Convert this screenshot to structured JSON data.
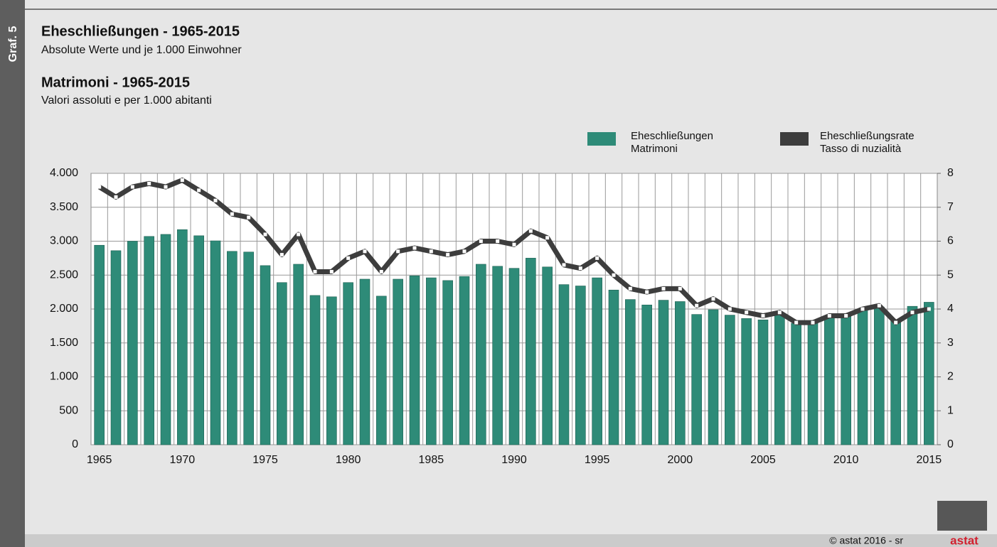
{
  "page": {
    "side_label": "Graf. 5",
    "credit": "© astat 2016 - sr",
    "logo": "astat"
  },
  "chart_data": {
    "type": "bar",
    "title": "Eheschließungen - 1965-2015",
    "subtitle": "Absolute Werte und je 1.000 Einwohner",
    "title_it": "Matrimoni - 1965-2015",
    "subtitle_it": "Valori assoluti e per 1.000 abitanti",
    "categories": [
      "1965",
      null,
      null,
      null,
      null,
      "1970",
      null,
      null,
      null,
      null,
      "1975",
      null,
      null,
      null,
      null,
      "1980",
      null,
      null,
      null,
      null,
      "1985",
      null,
      null,
      null,
      null,
      "1990",
      null,
      null,
      null,
      null,
      "1995",
      null,
      null,
      null,
      null,
      "2000",
      null,
      null,
      null,
      null,
      "2005",
      null,
      null,
      null,
      null,
      "2010",
      null,
      null,
      null,
      null,
      "2015"
    ],
    "series": [
      {
        "name": "Eheschließungen\nMatrimoni",
        "type": "bar",
        "color": "#2e8b78",
        "values": [
          2940,
          2860,
          3000,
          3070,
          3100,
          3170,
          3080,
          3005,
          2850,
          2840,
          2640,
          2390,
          2660,
          2200,
          2180,
          2390,
          2440,
          2190,
          2440,
          2490,
          2460,
          2420,
          2480,
          2660,
          2630,
          2600,
          2750,
          2620,
          2360,
          2340,
          2460,
          2280,
          2140,
          2060,
          2130,
          2110,
          1920,
          1990,
          1910,
          1860,
          1840,
          1940,
          1790,
          1790,
          1880,
          1910,
          1980,
          2030,
          1840,
          2040,
          2100
        ]
      },
      {
        "name": "Eheschließungsrate\nTasso di nuzialità",
        "type": "line",
        "axis": "y2",
        "color": "#3d3d3d",
        "values": [
          7.6,
          7.3,
          7.6,
          7.7,
          7.6,
          7.8,
          7.5,
          7.2,
          6.8,
          6.7,
          6.2,
          5.6,
          6.2,
          5.1,
          5.1,
          5.5,
          5.7,
          5.1,
          5.7,
          5.8,
          5.7,
          5.6,
          5.7,
          6.0,
          6.0,
          5.9,
          6.3,
          6.1,
          5.3,
          5.2,
          5.5,
          5.0,
          4.6,
          4.5,
          4.6,
          4.6,
          4.1,
          4.3,
          4.0,
          3.9,
          3.8,
          3.9,
          3.6,
          3.6,
          3.8,
          3.8,
          4.0,
          4.1,
          3.6,
          3.9,
          4.0
        ]
      }
    ],
    "ylim": [
      0,
      4000
    ],
    "yticks": [
      0,
      500,
      {
        "value": 1000,
        "label": "1.000"
      },
      {
        "value": 1500,
        "label": "1.500"
      },
      {
        "value": 2000,
        "label": "2.000"
      },
      {
        "value": 2500,
        "label": "2.500"
      },
      {
        "value": 3000,
        "label": "3.000"
      },
      {
        "value": 3500,
        "label": "3.500"
      },
      {
        "value": 4000,
        "label": "4.000"
      }
    ],
    "y2lim": [
      0,
      8
    ],
    "y2ticks": [
      0,
      1,
      2,
      3,
      4,
      5,
      6,
      7,
      8
    ],
    "grid": true
  }
}
